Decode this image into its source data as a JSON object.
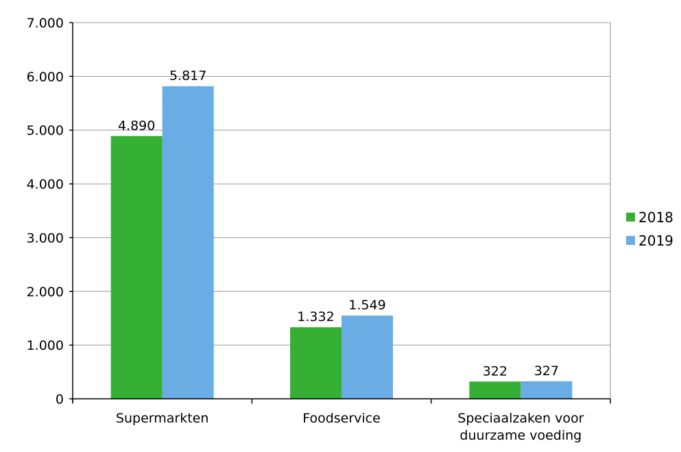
{
  "chart_data": {
    "type": "bar",
    "title": "",
    "xlabel": "",
    "ylabel": "",
    "categories": [
      [
        "Supermarkten"
      ],
      [
        "Foodservice"
      ],
      [
        "Speciaalzaken voor",
        "duurzame voeding"
      ]
    ],
    "series": [
      {
        "name": "2018",
        "color": "#35B035",
        "values": [
          4890,
          1332,
          322
        ],
        "labels": [
          "4.890",
          "1.332",
          "322"
        ]
      },
      {
        "name": "2019",
        "color": "#6AACE4",
        "values": [
          5817,
          1549,
          327
        ],
        "labels": [
          "5.817",
          "1.549",
          "327"
        ]
      }
    ],
    "ylim": [
      0,
      7000
    ],
    "yticks": [
      0,
      1000,
      2000,
      3000,
      4000,
      5000,
      6000,
      7000
    ],
    "ytick_labels": [
      "0",
      "1.000",
      "2.000",
      "3.000",
      "4.000",
      "5.000",
      "6.000",
      "7.000"
    ],
    "grid": true,
    "legend_position": "right"
  }
}
